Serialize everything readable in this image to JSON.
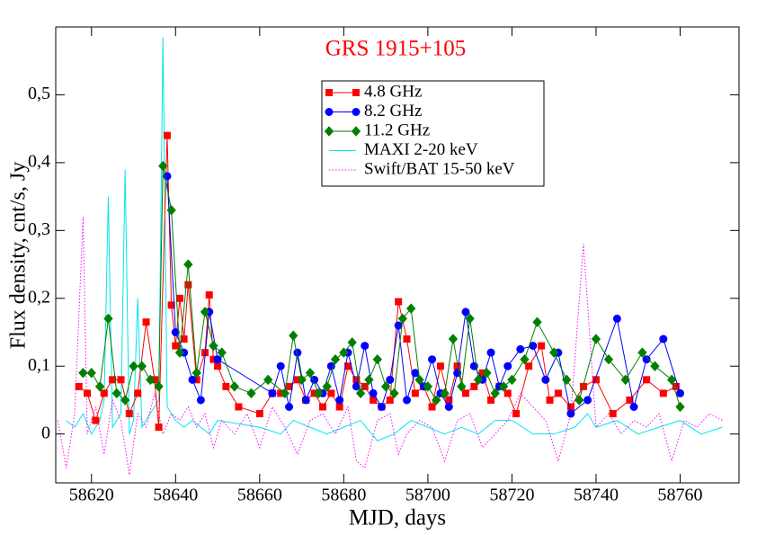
{
  "chart_data": {
    "type": "line",
    "title": "GRS 1915+105",
    "title_color": "#ff0000",
    "x_label": "MJD, days",
    "y_label": "Flux density, cnt/s, Jy",
    "xlim": [
      58611.5,
      58774
    ],
    "ylim": [
      -0.072,
      0.6
    ],
    "xticks": [
      58620,
      58640,
      58660,
      58680,
      58700,
      58720,
      58740,
      58760
    ],
    "yticks": [
      0,
      {
        "value": 0.1,
        "label": "0,1"
      },
      {
        "value": 0.2,
        "label": "0,2"
      },
      {
        "value": 0.3,
        "label": "0,3"
      },
      {
        "value": 0.4,
        "label": "0,4"
      },
      {
        "value": 0.5,
        "label": "0,5"
      }
    ],
    "grid": false,
    "legend": "top-center",
    "series": [
      {
        "name": "MAXI 2-20 keV",
        "color": "#00e5ee",
        "marker": "none",
        "line_style": "solid",
        "x": [
          58614,
          58616,
          58618,
          58620,
          58622,
          58623,
          58624,
          58625,
          58627,
          58628,
          58629,
          58630,
          58631,
          58632,
          58634,
          58636,
          58637,
          58638,
          58640,
          58642,
          58644,
          58646,
          58648,
          58650,
          58660,
          58665,
          58668,
          58672,
          58676,
          58680,
          58684,
          58688,
          58692,
          58696,
          58700,
          58704,
          58708,
          58712,
          58716,
          58720,
          58725,
          58730,
          58735,
          58738,
          58740,
          58745,
          58750,
          58755,
          58760,
          58765,
          58770
        ],
        "values": [
          0.02,
          0.01,
          0.03,
          0.0,
          0.02,
          0.05,
          0.35,
          0.01,
          0.03,
          0.39,
          0.0,
          0.02,
          0.2,
          0.01,
          0.03,
          0.05,
          0.585,
          0.04,
          0.02,
          0.01,
          0.02,
          0.01,
          0.0,
          0.02,
          0.01,
          0.0,
          0.02,
          0.01,
          0.0,
          0.01,
          0.02,
          -0.01,
          0.0,
          0.02,
          0.01,
          0.0,
          0.01,
          0.0,
          0.02,
          0.02,
          0.0,
          0.0,
          0.01,
          0.03,
          0.01,
          0.02,
          0.0,
          0.01,
          0.02,
          0.0,
          0.01
        ]
      },
      {
        "name": "Swift/BAT 15-50 keV",
        "color": "#ff00ff",
        "marker": "none",
        "line_style": "dotted",
        "x": [
          58612,
          58614,
          58616,
          58618,
          58619,
          58621,
          58623,
          58625,
          58627,
          58629,
          58631,
          58633,
          58635,
          58637,
          58639,
          58641,
          58643,
          58645,
          58647,
          58649,
          58651,
          58654,
          58657,
          58660,
          58663,
          58666,
          58669,
          58672,
          58675,
          58678,
          58681,
          58683,
          58685,
          58688,
          58691,
          58693,
          58695,
          58698,
          58701,
          58704,
          58707,
          58710,
          58713,
          58716,
          58719,
          58722,
          58725,
          58728,
          58731,
          58734,
          58737,
          58740,
          58743,
          58746,
          58749,
          58752,
          58755,
          58758,
          58761,
          58764,
          58767,
          58770
        ],
        "values": [
          0.02,
          -0.05,
          0.03,
          0.32,
          0.0,
          0.04,
          -0.03,
          0.05,
          0.02,
          -0.06,
          0.03,
          0.01,
          0.06,
          0.0,
          0.03,
          0.02,
          0.04,
          0.01,
          0.03,
          -0.02,
          0.02,
          0.0,
          0.03,
          -0.02,
          0.04,
          0.01,
          -0.03,
          0.02,
          0.03,
          0.0,
          0.04,
          -0.04,
          -0.05,
          0.02,
          0.03,
          -0.03,
          0.0,
          0.02,
          0.01,
          -0.04,
          0.02,
          0.03,
          -0.02,
          0.0,
          0.02,
          0.06,
          0.04,
          0.02,
          -0.04,
          0.03,
          0.28,
          0.01,
          0.03,
          0.0,
          0.02,
          0.01,
          0.03,
          -0.04,
          0.02,
          0.01,
          0.03,
          0.02
        ]
      },
      {
        "name": "4.8 GHz",
        "color": "#ff0000",
        "marker": "square",
        "line_style": "solid",
        "x": [
          58617,
          58619,
          58621,
          58623,
          58625,
          58627,
          58629,
          58631,
          58633,
          58635,
          58636,
          58638,
          58639,
          58640,
          58641,
          58642,
          58643,
          58645,
          58647,
          58648,
          58649,
          58650,
          58652,
          58655,
          58660,
          58663,
          58665,
          58667,
          58669,
          58671,
          58673,
          58675,
          58677,
          58679,
          58681,
          58683,
          58685,
          58687,
          58689,
          58691,
          58693,
          58695,
          58697,
          58699,
          58701,
          58703,
          58705,
          58707,
          58709,
          58711,
          58713,
          58715,
          58717,
          58719,
          58721,
          58724,
          58727,
          58729,
          58731,
          58734,
          58737,
          58740,
          58744,
          58748,
          58752,
          58756,
          58759
        ],
        "values": [
          0.07,
          0.06,
          0.02,
          0.06,
          0.08,
          0.08,
          0.03,
          0.06,
          0.165,
          0.08,
          0.01,
          0.44,
          0.19,
          0.13,
          0.2,
          0.14,
          0.22,
          0.08,
          0.12,
          0.205,
          0.11,
          0.1,
          0.07,
          0.04,
          0.03,
          0.06,
          0.06,
          0.07,
          0.08,
          0.05,
          0.06,
          0.04,
          0.06,
          0.04,
          0.1,
          0.08,
          0.07,
          0.05,
          0.04,
          0.05,
          0.195,
          0.14,
          0.06,
          0.07,
          0.04,
          0.1,
          0.05,
          0.1,
          0.06,
          0.07,
          0.09,
          0.05,
          0.07,
          0.06,
          0.03,
          0.1,
          0.13,
          0.05,
          0.06,
          0.04,
          0.07,
          0.08,
          0.03,
          0.05,
          0.08,
          0.06,
          0.07
        ]
      },
      {
        "name": "8.2 GHz",
        "color": "#0000ff",
        "marker": "circle",
        "line_style": "solid",
        "x": [
          58638,
          58640,
          58642,
          58644,
          58646,
          58648,
          58650,
          58663,
          58665,
          58667,
          58669,
          58671,
          58673,
          58675,
          58677,
          58679,
          58681,
          58683,
          58685,
          58687,
          58689,
          58691,
          58693,
          58695,
          58697,
          58699,
          58701,
          58703,
          58705,
          58707,
          58709,
          58711,
          58713,
          58715,
          58717,
          58719,
          58722,
          58725,
          58728,
          58731,
          58734,
          58738,
          58745,
          58749,
          58752,
          58756,
          58760
        ],
        "values": [
          0.38,
          0.15,
          0.12,
          0.08,
          0.05,
          0.18,
          0.11,
          0.06,
          0.1,
          0.04,
          0.12,
          0.05,
          0.08,
          0.06,
          0.1,
          0.05,
          0.12,
          0.07,
          0.13,
          0.06,
          0.04,
          0.08,
          0.16,
          0.05,
          0.09,
          0.07,
          0.11,
          0.06,
          0.04,
          0.09,
          0.18,
          0.1,
          0.08,
          0.12,
          0.07,
          0.1,
          0.125,
          0.13,
          0.08,
          0.12,
          0.03,
          0.05,
          0.17,
          0.04,
          0.11,
          0.14,
          0.06
        ]
      },
      {
        "name": "11.2 GHz",
        "color": "#008000",
        "marker": "diamond",
        "line_style": "solid",
        "x": [
          58618,
          58620,
          58622,
          58624,
          58626,
          58628,
          58630,
          58632,
          58634,
          58636,
          58637,
          58639,
          58641,
          58643,
          58645,
          58647,
          58649,
          58651,
          58654,
          58658,
          58662,
          58666,
          58668,
          58670,
          58672,
          58674,
          58676,
          58678,
          58680,
          58682,
          58684,
          58686,
          58688,
          58690,
          58692,
          58694,
          58696,
          58698,
          58700,
          58702,
          58704,
          58706,
          58708,
          58710,
          58712,
          58714,
          58716,
          58718,
          58720,
          58723,
          58726,
          58730,
          58733,
          58736,
          58740,
          58743,
          58747,
          58751,
          58754,
          58758,
          58760
        ],
        "values": [
          0.09,
          0.09,
          0.07,
          0.17,
          0.06,
          0.05,
          0.1,
          0.1,
          0.08,
          0.07,
          0.395,
          0.33,
          0.12,
          0.25,
          0.09,
          0.18,
          0.13,
          0.12,
          0.07,
          0.06,
          0.08,
          0.06,
          0.145,
          0.08,
          0.09,
          0.06,
          0.07,
          0.11,
          0.12,
          0.135,
          0.06,
          0.08,
          0.11,
          0.07,
          0.06,
          0.17,
          0.185,
          0.08,
          0.07,
          0.05,
          0.06,
          0.14,
          0.07,
          0.17,
          0.08,
          0.09,
          0.06,
          0.07,
          0.08,
          0.11,
          0.165,
          0.12,
          0.08,
          0.05,
          0.14,
          0.11,
          0.08,
          0.12,
          0.1,
          0.08,
          0.04
        ]
      }
    ],
    "legend_order": [
      2,
      3,
      4,
      0,
      1
    ]
  }
}
